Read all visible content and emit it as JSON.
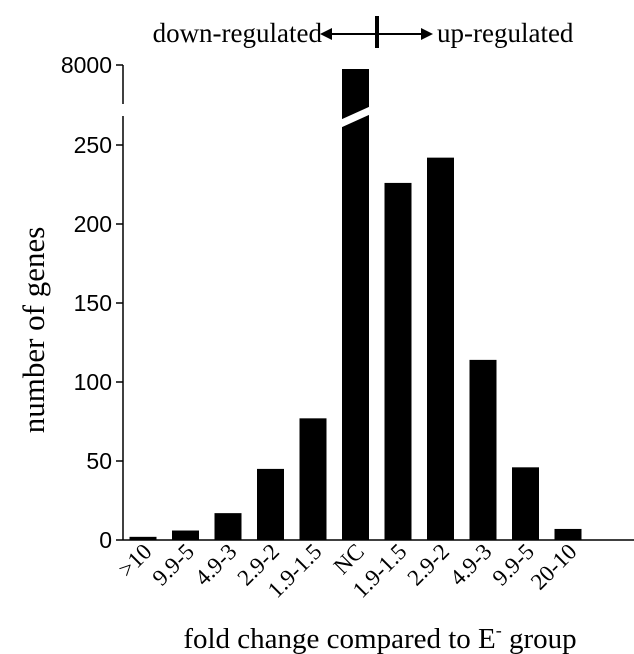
{
  "chart_data": {
    "type": "bar",
    "categories": [
      ">10",
      "9.9-5",
      "4.9-3",
      "2.9-2",
      "1.9-1.5",
      "NC",
      "1.9-1.5",
      "2.9-2",
      "4.9-3",
      "9.9-5",
      "20-10"
    ],
    "values": [
      2,
      6,
      17,
      45,
      77,
      8000,
      226,
      242,
      114,
      46,
      7
    ],
    "ylabel": "number of genes",
    "xlabel_main": "fold change compared to E",
    "xlabel_superscript": "-",
    "xlabel_suffix": " group",
    "y_ticks_lower": [
      "0",
      "50",
      "100",
      "150",
      "200",
      "250"
    ],
    "y_tick_upper": "8000",
    "ylim_lower": [
      0,
      250
    ],
    "y_axis_break": true,
    "colors": {
      "bar": "#000000",
      "axis": "#000000"
    },
    "annotations": {
      "down_label": "down-regulated",
      "up_label": "up-regulated"
    }
  }
}
